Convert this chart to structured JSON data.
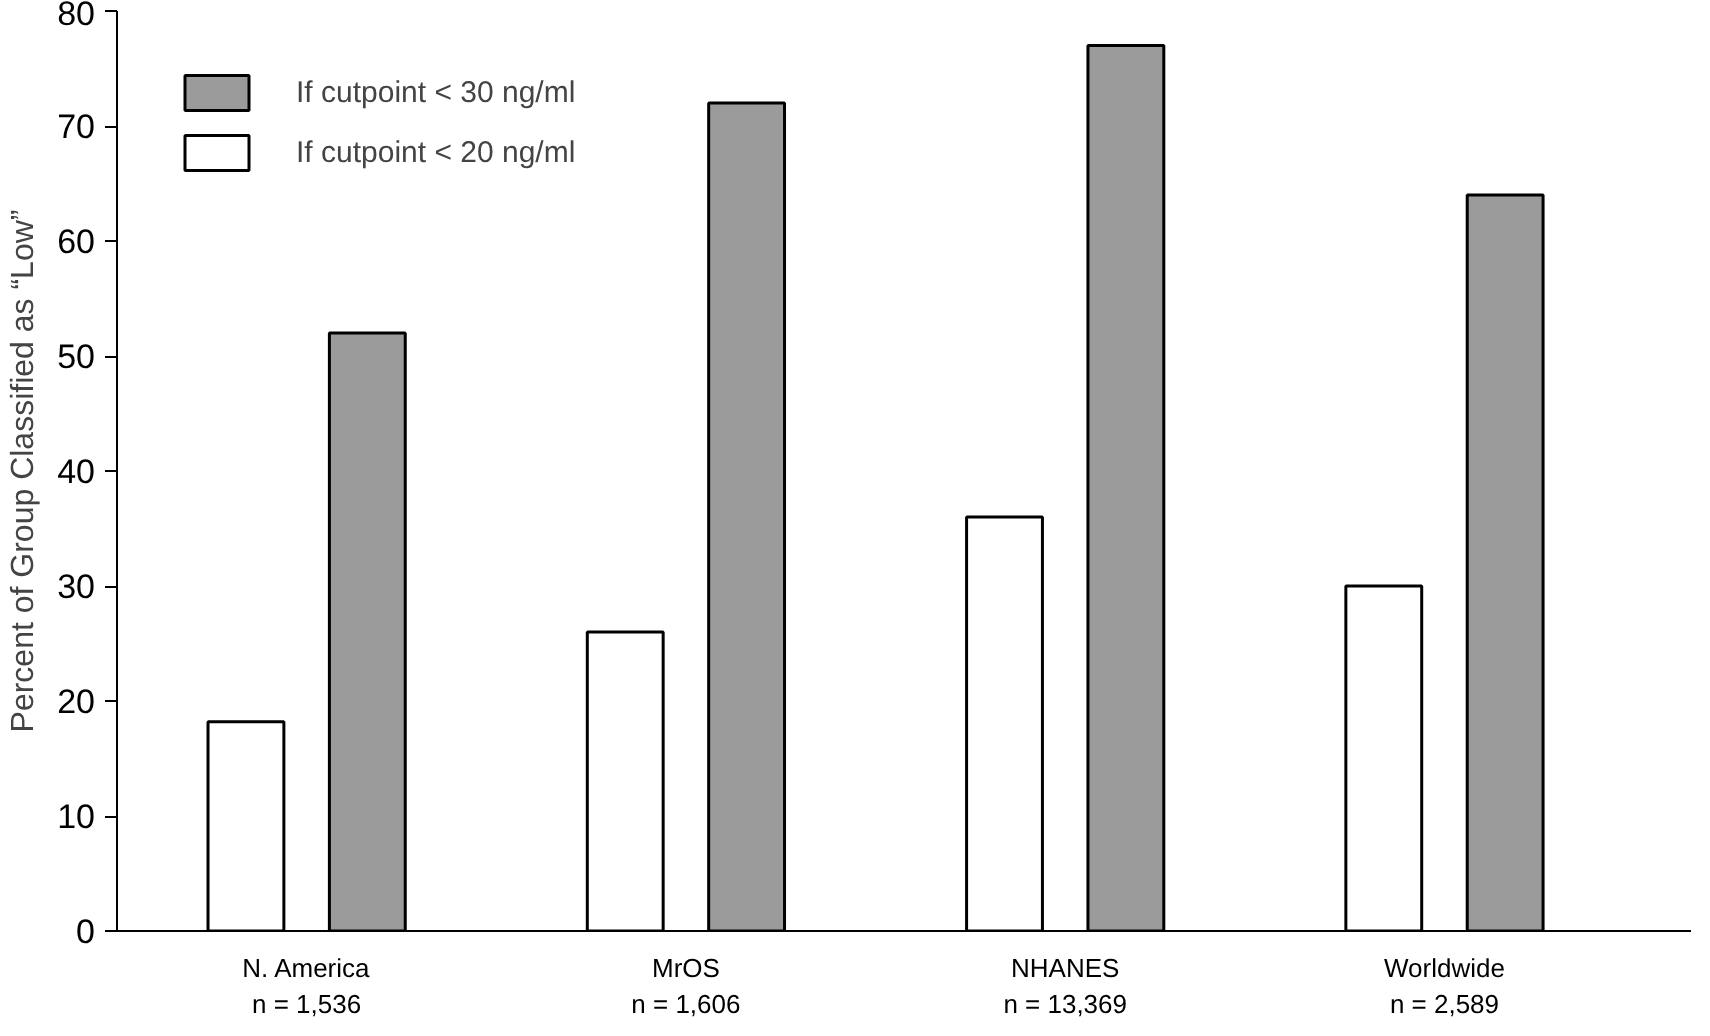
{
  "chart_data": {
    "type": "bar",
    "ylabel": "Percent of Group Classified as “Low”",
    "categories": [
      "N. America\nn = 1,536",
      "MrOS\nn = 1,606",
      "NHANES\nn = 13,369",
      "Worldwide\nn = 2,589"
    ],
    "series": [
      {
        "name": "If cutpoint < 20 ng/ml",
        "color": "#ffffff",
        "values": [
          18.2,
          26,
          36,
          30
        ]
      },
      {
        "name": "If cutpoint < 30 ng/ml",
        "color": "#9b9b9b",
        "values": [
          52,
          72,
          77,
          64
        ]
      }
    ],
    "ylim": [
      0,
      80
    ],
    "yticks": [
      0,
      10,
      20,
      30,
      40,
      50,
      60,
      70,
      80
    ],
    "legend": "top left"
  }
}
